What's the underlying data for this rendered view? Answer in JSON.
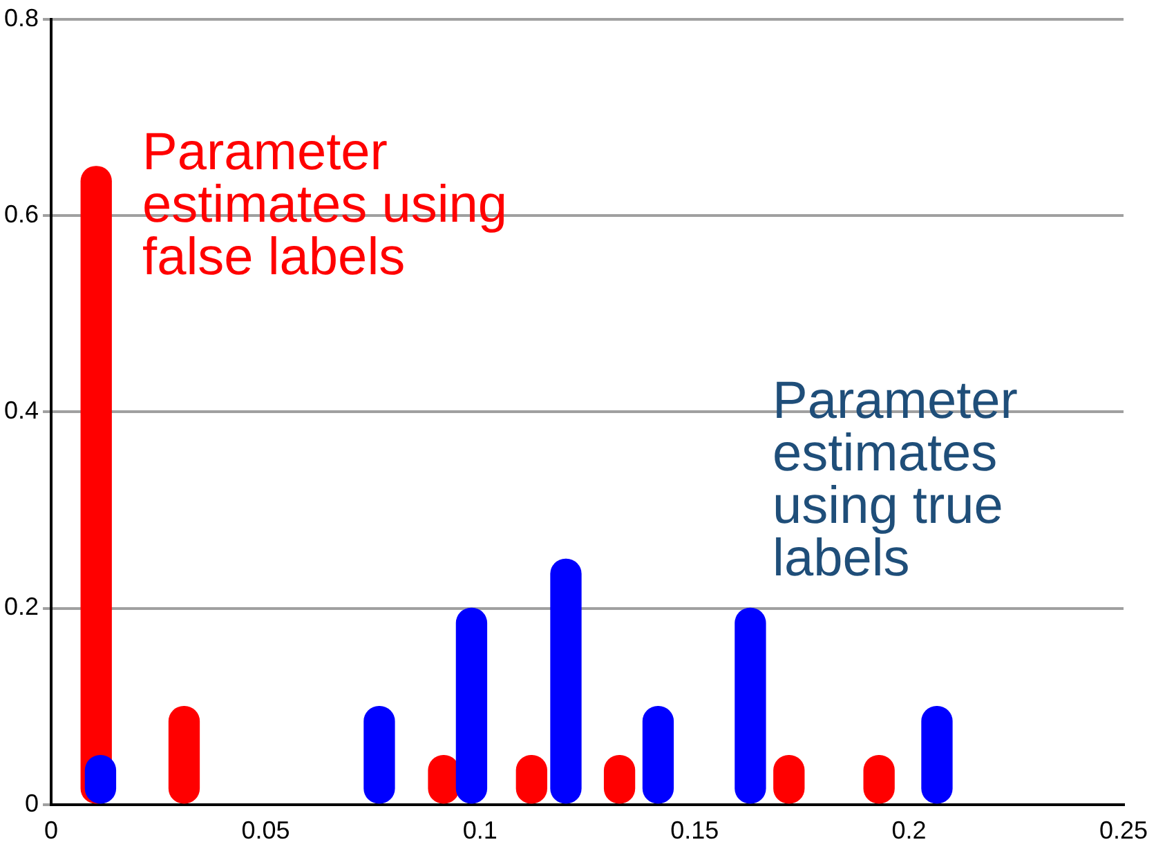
{
  "chart_data": {
    "type": "bar",
    "xlim": [
      0,
      0.25
    ],
    "xticks": [
      0,
      0.05,
      0.1,
      0.15,
      0.2,
      0.25
    ],
    "ylim": [
      0,
      0.8
    ],
    "yticks": [
      0,
      0.2,
      0.4,
      0.6,
      0.8
    ],
    "grid": "y",
    "legend": false,
    "series": [
      {
        "name": "Parameter estimates using false labels",
        "color": "#ff0000",
        "x": [
          0.0105,
          0.031,
          0.0915,
          0.112,
          0.1325,
          0.172,
          0.193
        ],
        "values": [
          0.65,
          0.1,
          0.05,
          0.05,
          0.05,
          0.05,
          0.05
        ]
      },
      {
        "name": "Parameter estimates using true labels",
        "color": "#0000ff",
        "x": [
          0.0115,
          0.0765,
          0.098,
          0.12,
          0.1415,
          0.163,
          0.2065
        ],
        "values": [
          0.05,
          0.1,
          0.2,
          0.25,
          0.1,
          0.2,
          0.1
        ]
      }
    ]
  }
}
